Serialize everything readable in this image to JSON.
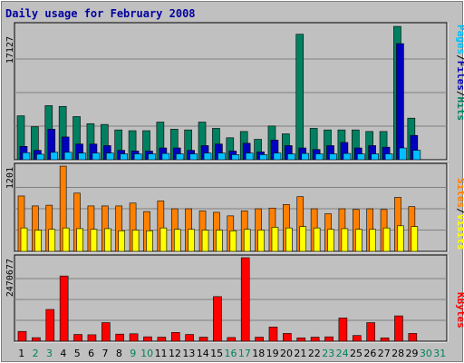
{
  "chart_data": {
    "type": "bar",
    "title": "Daily usage for February 2008",
    "categories": [
      "1",
      "2",
      "3",
      "4",
      "5",
      "6",
      "7",
      "8",
      "9",
      "10",
      "11",
      "12",
      "13",
      "14",
      "15",
      "16",
      "17",
      "18",
      "19",
      "20",
      "21",
      "22",
      "23",
      "24",
      "25",
      "26",
      "27",
      "28",
      "29",
      "30",
      "31"
    ],
    "weekend_days": [
      "2",
      "3",
      "9",
      "10",
      "16",
      "17",
      "23",
      "24",
      "30",
      "31"
    ],
    "panels": [
      {
        "name": "hits-panel",
        "ymax_label": "17127",
        "ylim": [
          0,
          17127
        ],
        "legend": [
          "Pages",
          "/",
          "Files",
          "/",
          "Hits"
        ],
        "legend_colors": [
          "#00c0ff",
          "#000000",
          "#0000c0",
          "#000000",
          "#008060"
        ],
        "series": [
          {
            "name": "Hits",
            "color": "#008060",
            "values": [
              5600,
              4200,
              6900,
              6800,
              5500,
              4600,
              4500,
              3800,
              3700,
              3700,
              4800,
              3900,
              3800,
              4800,
              4000,
              2800,
              3600,
              2600,
              4300,
              3300,
              16000,
              4000,
              3800,
              3800,
              3800,
              3600,
              3600,
              17000,
              5300,
              0,
              0
            ]
          },
          {
            "name": "Files",
            "color": "#0000c0",
            "values": [
              1700,
              1200,
              3900,
              2900,
              2000,
              2000,
              1800,
              1200,
              1100,
              1100,
              1500,
              1500,
              1200,
              1800,
              2000,
              1100,
              2100,
              1000,
              2500,
              1800,
              1500,
              1300,
              1800,
              2200,
              1500,
              1800,
              1600,
              14800,
              3100,
              0,
              0
            ]
          },
          {
            "name": "Pages",
            "color": "#00c0ff",
            "values": [
              900,
              700,
              950,
              950,
              850,
              850,
              850,
              750,
              750,
              750,
              800,
              750,
              750,
              850,
              850,
              650,
              850,
              650,
              850,
              750,
              800,
              750,
              750,
              800,
              750,
              750,
              750,
              1500,
              1200,
              0,
              0
            ]
          }
        ]
      },
      {
        "name": "visits-panel",
        "ymax_label": "1201",
        "ylim": [
          0,
          1201
        ],
        "legend": [
          "Sites",
          "/",
          "Visits"
        ],
        "legend_colors": [
          "#ff8000",
          "#000000",
          "#ffff00"
        ],
        "series": [
          {
            "name": "Visits",
            "color": "#ff8000",
            "values": [
              780,
              640,
              650,
              1200,
              820,
              640,
              640,
              640,
              680,
              560,
              710,
              600,
              600,
              570,
              550,
              500,
              570,
              600,
              610,
              660,
              770,
              600,
              530,
              600,
              590,
              600,
              590,
              760,
              630,
              0,
              0
            ]
          },
          {
            "name": "Sites",
            "color": "#ffff00",
            "values": [
              330,
              300,
              310,
              330,
              320,
              310,
              320,
              290,
              300,
              290,
              330,
              310,
              310,
              300,
              300,
              290,
              310,
              300,
              340,
              330,
              350,
              330,
              310,
              320,
              310,
              310,
              330,
              360,
              350,
              0,
              0
            ]
          }
        ]
      },
      {
        "name": "kbytes-panel",
        "ymax_label": "2470677",
        "ylim": [
          0,
          2470677
        ],
        "legend": [
          "KBytes"
        ],
        "legend_colors": [
          "#ff0000"
        ],
        "series": [
          {
            "name": "KBytes",
            "color": "#ff0000",
            "values": [
              290000,
              105000,
              940000,
              1930000,
              200000,
              190000,
              550000,
              210000,
              220000,
              130000,
              120000,
              260000,
              200000,
              120000,
              1320000,
              110000,
              2470677,
              120000,
              420000,
              230000,
              100000,
              120000,
              130000,
              690000,
              170000,
              550000,
              100000,
              750000,
              230000,
              0,
              0
            ]
          }
        ]
      }
    ]
  }
}
